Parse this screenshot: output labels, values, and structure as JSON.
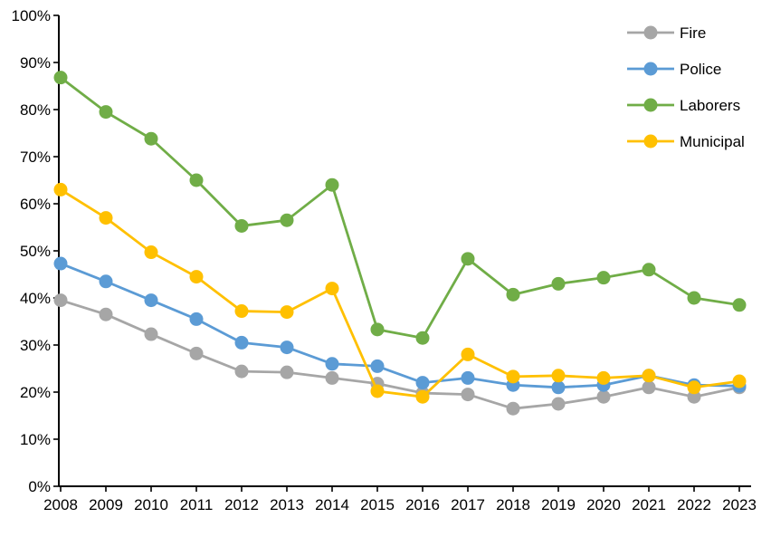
{
  "chart_data": {
    "type": "line",
    "title": "",
    "xlabel": "",
    "ylabel": "",
    "x": [
      "2008",
      "2009",
      "2010",
      "2011",
      "2012",
      "2013",
      "2014",
      "2015",
      "2016",
      "2017",
      "2018",
      "2019",
      "2020",
      "2021",
      "2022",
      "2023"
    ],
    "series": [
      {
        "name": "Fire",
        "color": "#A6A6A6",
        "values": [
          39.5,
          36.5,
          32.3,
          28.2,
          24.4,
          24.2,
          23.0,
          21.8,
          19.8,
          19.5,
          16.5,
          17.5,
          19.0,
          21.0,
          19.0,
          21.0
        ]
      },
      {
        "name": "Police",
        "color": "#5B9BD5",
        "values": [
          47.3,
          43.5,
          39.5,
          35.5,
          30.5,
          29.5,
          26.0,
          25.5,
          22.0,
          23.0,
          21.5,
          21.0,
          21.5,
          23.5,
          21.5,
          21.3
        ]
      },
      {
        "name": "Laborers",
        "color": "#70AD47",
        "values": [
          86.8,
          79.5,
          73.8,
          65.0,
          55.3,
          56.5,
          64.0,
          33.3,
          31.5,
          48.3,
          40.7,
          43.0,
          44.3,
          46.0,
          40.0,
          38.5
        ]
      },
      {
        "name": "Municipal",
        "color": "#FFC000",
        "values": [
          63.0,
          57.0,
          49.7,
          44.5,
          37.2,
          37.0,
          42.0,
          20.2,
          19.0,
          28.0,
          23.3,
          23.5,
          23.0,
          23.5,
          21.0,
          22.3
        ]
      }
    ],
    "ylim": [
      0,
      100
    ],
    "ytick_step": 10,
    "ytick_suffix": "%",
    "grid": false,
    "legend_position": "top-right",
    "axis_color": "#000000",
    "marker_shape": "circle"
  }
}
